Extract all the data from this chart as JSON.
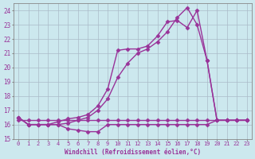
{
  "xlabel": "Windchill (Refroidissement éolien,°C)",
  "xlim": [
    -0.5,
    23.5
  ],
  "ylim": [
    15,
    24.5
  ],
  "xticks": [
    0,
    1,
    2,
    3,
    4,
    5,
    6,
    7,
    8,
    9,
    10,
    11,
    12,
    13,
    14,
    15,
    16,
    17,
    18,
    19,
    20,
    21,
    22,
    23
  ],
  "yticks": [
    15,
    16,
    17,
    18,
    19,
    20,
    21,
    22,
    23,
    24
  ],
  "bg_color": "#cce8ee",
  "grid_color": "#aabbc8",
  "line_color": "#993399",
  "line_width": 1.0,
  "marker": "D",
  "marker_size": 2.5,
  "lines": [
    {
      "x": [
        0,
        1,
        2,
        3,
        4,
        5,
        6,
        7,
        8,
        9,
        10,
        11,
        12,
        13,
        14,
        15,
        16,
        17,
        18,
        19,
        20,
        21,
        22,
        23
      ],
      "y": [
        16.3,
        16.3,
        16.3,
        16.3,
        16.3,
        16.3,
        16.3,
        16.3,
        16.3,
        16.3,
        16.3,
        16.3,
        16.3,
        16.3,
        16.3,
        16.3,
        16.3,
        16.3,
        16.3,
        16.3,
        16.3,
        16.3,
        16.3,
        16.3
      ]
    },
    {
      "x": [
        0,
        1,
        2,
        3,
        4,
        5,
        6,
        7,
        8,
        9,
        10,
        11,
        12,
        13,
        14,
        15,
        16,
        17,
        18,
        19,
        20,
        21,
        22,
        23
      ],
      "y": [
        16.5,
        16.0,
        16.0,
        16.0,
        16.0,
        15.7,
        15.6,
        15.5,
        15.5,
        16.0,
        16.0,
        16.0,
        16.0,
        16.0,
        16.0,
        16.0,
        16.0,
        16.0,
        16.0,
        16.0,
        16.3,
        16.3,
        16.3,
        16.3
      ]
    },
    {
      "x": [
        0,
        1,
        2,
        3,
        4,
        5,
        6,
        7,
        8,
        9,
        10,
        11,
        12,
        13,
        14,
        15,
        16,
        17,
        18,
        19,
        20,
        21,
        22,
        23
      ],
      "y": [
        16.5,
        16.0,
        16.0,
        16.0,
        16.2,
        16.4,
        16.5,
        16.7,
        17.3,
        18.5,
        21.2,
        21.3,
        21.3,
        21.5,
        22.2,
        23.2,
        23.3,
        22.8,
        24.0,
        20.5,
        16.3,
        16.3,
        16.3,
        16.3
      ]
    },
    {
      "x": [
        0,
        1,
        2,
        3,
        4,
        5,
        6,
        7,
        8,
        9,
        10,
        11,
        12,
        13,
        14,
        15,
        16,
        17,
        18,
        19,
        20,
        21,
        22,
        23
      ],
      "y": [
        16.5,
        16.0,
        16.0,
        16.0,
        16.0,
        16.1,
        16.3,
        16.5,
        17.0,
        17.8,
        19.3,
        20.3,
        21.0,
        21.3,
        21.8,
        22.5,
        23.5,
        24.2,
        23.0,
        20.5,
        16.3,
        16.3,
        16.3,
        16.3
      ]
    }
  ]
}
